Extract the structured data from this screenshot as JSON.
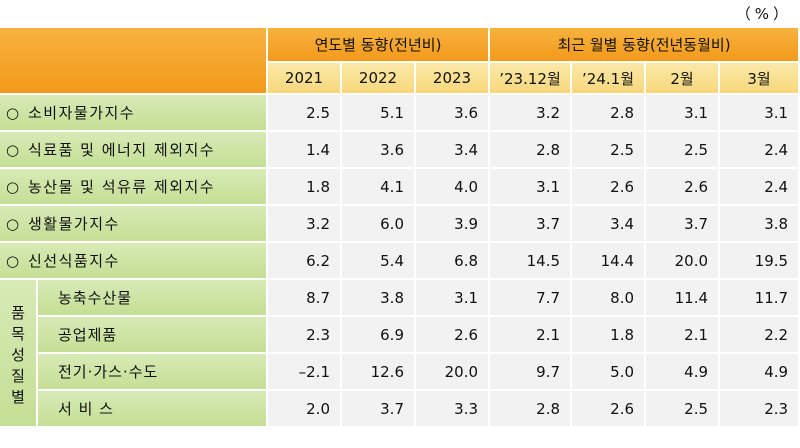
{
  "unit": "（%）",
  "header": {
    "annual_group": "연도별 동향(전년비)",
    "monthly_group": "최근 월별 동향(전년동월비)",
    "columns": [
      "2021",
      "2022",
      "2023",
      "’23.12월",
      "’24.1월",
      "2월",
      "3월"
    ]
  },
  "bullet": "○",
  "rows": [
    {
      "label": "소비자물가지수",
      "values": [
        "2.5",
        "5.1",
        "3.6",
        "3.2",
        "2.8",
        "3.1",
        "3.1"
      ]
    },
    {
      "label": "식료품 및 에너지 제외지수",
      "values": [
        "1.4",
        "3.6",
        "3.4",
        "2.8",
        "2.5",
        "2.5",
        "2.4"
      ]
    },
    {
      "label": "농산물 및 석유류 제외지수",
      "values": [
        "1.8",
        "4.1",
        "4.0",
        "3.1",
        "2.6",
        "2.6",
        "2.4"
      ]
    },
    {
      "label": "생활물가지수",
      "values": [
        "3.2",
        "6.0",
        "3.9",
        "3.7",
        "3.4",
        "3.7",
        "3.8"
      ]
    },
    {
      "label": "신선식품지수",
      "values": [
        "6.2",
        "5.4",
        "6.8",
        "14.5",
        "14.4",
        "20.0",
        "19.5"
      ]
    }
  ],
  "category": {
    "chars": [
      "품",
      "목",
      "성",
      "질",
      "별"
    ],
    "rows": [
      {
        "label": "농축수산물",
        "values": [
          "8.7",
          "3.8",
          "3.1",
          "7.7",
          "8.0",
          "11.4",
          "11.7"
        ]
      },
      {
        "label": "공업제품",
        "values": [
          "2.3",
          "6.9",
          "2.6",
          "2.1",
          "1.8",
          "2.1",
          "2.2"
        ]
      },
      {
        "label": "전기·가스·수도",
        "values": [
          "–2.1",
          "12.6",
          "20.0",
          "9.7",
          "5.0",
          "4.9",
          "4.9"
        ]
      },
      {
        "label": "서 비 스",
        "values": [
          "2.0",
          "3.7",
          "3.3",
          "2.8",
          "2.6",
          "2.5",
          "2.3"
        ]
      }
    ]
  }
}
